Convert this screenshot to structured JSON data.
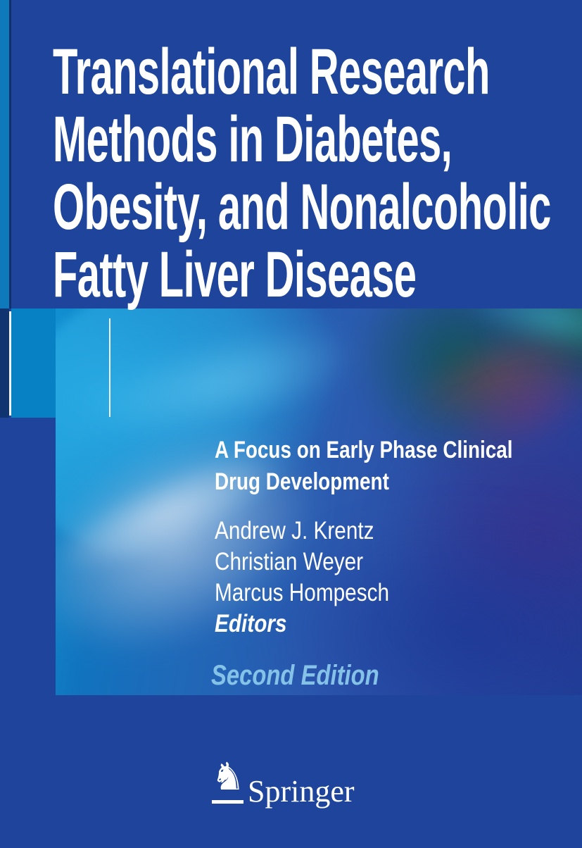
{
  "cover": {
    "title_lines": [
      "Translational Research",
      "Methods in Diabetes,",
      "Obesity, and Nonalcoholic",
      "Fatty Liver Disease"
    ],
    "subtitle_lines": [
      "A Focus on Early Phase Clinical",
      "Drug Development"
    ],
    "editor_names": [
      "Andrew J. Krentz",
      "Christian Weyer",
      "Marcus Hompesch"
    ],
    "editors_label": "Editors",
    "edition_label": "Second Edition",
    "publisher": {
      "name": "Springer",
      "logo_icon": "springer-horse-icon"
    },
    "colors": {
      "background_blue": "#1E459B",
      "left_panel_navy": "#0F3470",
      "left_panel_cyan": "#0880C4",
      "edge_stripe_cyan": "#0E7ABB",
      "edge_stripe_navy": "#12306B",
      "art_band_cyan": "#0F8FD0",
      "art_band_indigo": "#3A308C",
      "art_band_teal": "#0D544A",
      "edition_light_blue": "#85C2E8",
      "text_white": "#FFFFFF"
    }
  }
}
